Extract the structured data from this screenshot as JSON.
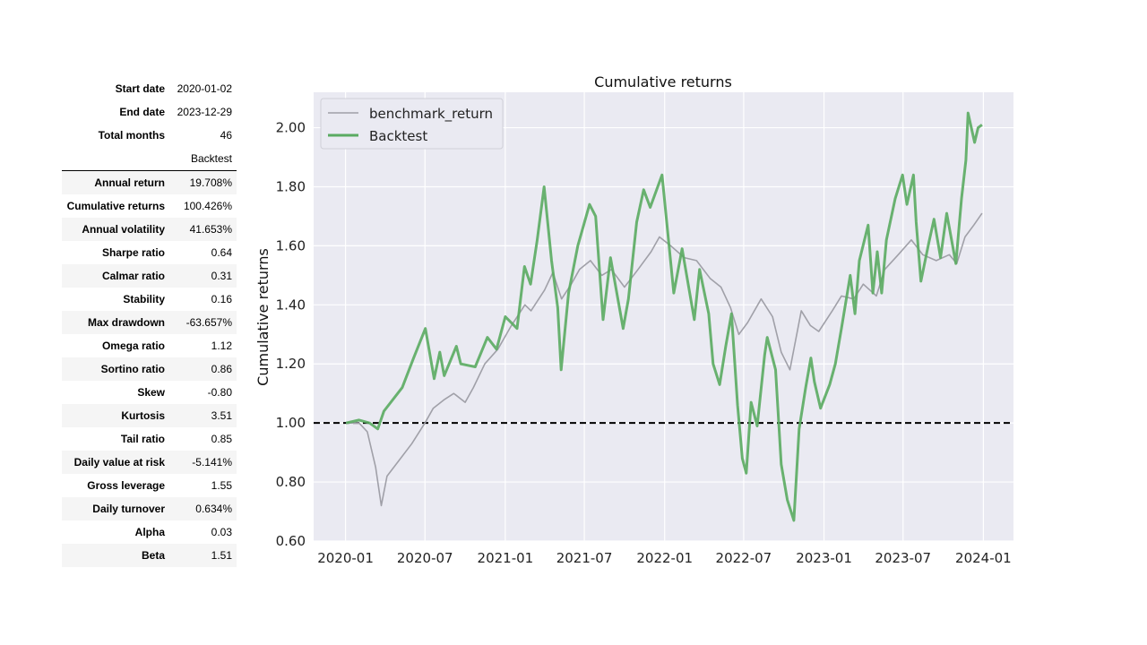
{
  "summary": [
    {
      "label": "Start date",
      "value": "2020-01-02"
    },
    {
      "label": "End date",
      "value": "2023-12-29"
    },
    {
      "label": "Total months",
      "value": "46"
    }
  ],
  "metrics_header": "Backtest",
  "metrics": [
    {
      "label": "Annual return",
      "value": "19.708%"
    },
    {
      "label": "Cumulative returns",
      "value": "100.426%"
    },
    {
      "label": "Annual volatility",
      "value": "41.653%"
    },
    {
      "label": "Sharpe ratio",
      "value": "0.64"
    },
    {
      "label": "Calmar ratio",
      "value": "0.31"
    },
    {
      "label": "Stability",
      "value": "0.16"
    },
    {
      "label": "Max drawdown",
      "value": "-63.657%"
    },
    {
      "label": "Omega ratio",
      "value": "1.12"
    },
    {
      "label": "Sortino ratio",
      "value": "0.86"
    },
    {
      "label": "Skew",
      "value": "-0.80"
    },
    {
      "label": "Kurtosis",
      "value": "3.51"
    },
    {
      "label": "Tail ratio",
      "value": "0.85"
    },
    {
      "label": "Daily value at risk",
      "value": "-5.141%"
    },
    {
      "label": "Gross leverage",
      "value": "1.55"
    },
    {
      "label": "Daily turnover",
      "value": "0.634%"
    },
    {
      "label": "Alpha",
      "value": "0.03"
    },
    {
      "label": "Beta",
      "value": "1.51"
    }
  ],
  "chart_data": {
    "type": "line",
    "title": "Cumulative returns",
    "xlabel": "",
    "ylabel": "Cumulative returns",
    "xlim": [
      "2019-10-20",
      "2024-03-10"
    ],
    "ylim": [
      0.6,
      2.12
    ],
    "yticks": [
      "0.60",
      "0.80",
      "1.00",
      "1.20",
      "1.40",
      "1.60",
      "1.80",
      "2.00"
    ],
    "xticks": [
      "2020-01",
      "2020-07",
      "2021-01",
      "2021-07",
      "2022-01",
      "2022-07",
      "2023-01",
      "2023-07",
      "2024-01"
    ],
    "grid": true,
    "legend": "top-left",
    "reference_line": {
      "y": 1.0,
      "style": "dashed",
      "color": "#000000"
    },
    "background": "#eaeaf2",
    "series": [
      {
        "name": "benchmark_return",
        "color": "#a0a0a8",
        "points": [
          [
            "2020-01-02",
            1.0
          ],
          [
            "2020-02-01",
            1.0
          ],
          [
            "2020-02-20",
            0.97
          ],
          [
            "2020-03-10",
            0.85
          ],
          [
            "2020-03-23",
            0.72
          ],
          [
            "2020-04-05",
            0.82
          ],
          [
            "2020-05-01",
            0.87
          ],
          [
            "2020-06-01",
            0.93
          ],
          [
            "2020-07-01",
            1.0
          ],
          [
            "2020-07-20",
            1.05
          ],
          [
            "2020-08-15",
            1.08
          ],
          [
            "2020-09-05",
            1.1
          ],
          [
            "2020-10-01",
            1.07
          ],
          [
            "2020-10-20",
            1.12
          ],
          [
            "2020-11-15",
            1.2
          ],
          [
            "2020-12-15",
            1.25
          ],
          [
            "2021-01-15",
            1.33
          ],
          [
            "2021-02-15",
            1.4
          ],
          [
            "2021-03-01",
            1.38
          ],
          [
            "2021-04-01",
            1.45
          ],
          [
            "2021-04-20",
            1.51
          ],
          [
            "2021-05-10",
            1.42
          ],
          [
            "2021-06-01",
            1.47
          ],
          [
            "2021-06-20",
            1.52
          ],
          [
            "2021-07-15",
            1.55
          ],
          [
            "2021-08-10",
            1.5
          ],
          [
            "2021-09-01",
            1.52
          ],
          [
            "2021-10-01",
            1.46
          ],
          [
            "2021-11-01",
            1.52
          ],
          [
            "2021-12-01",
            1.58
          ],
          [
            "2021-12-20",
            1.63
          ],
          [
            "2022-01-15",
            1.6
          ],
          [
            "2022-02-15",
            1.56
          ],
          [
            "2022-03-15",
            1.55
          ],
          [
            "2022-04-15",
            1.49
          ],
          [
            "2022-05-10",
            1.46
          ],
          [
            "2022-06-01",
            1.39
          ],
          [
            "2022-06-20",
            1.3
          ],
          [
            "2022-07-10",
            1.34
          ],
          [
            "2022-08-10",
            1.42
          ],
          [
            "2022-09-05",
            1.36
          ],
          [
            "2022-09-25",
            1.24
          ],
          [
            "2022-10-15",
            1.18
          ],
          [
            "2022-11-10",
            1.38
          ],
          [
            "2022-12-01",
            1.33
          ],
          [
            "2022-12-20",
            1.31
          ],
          [
            "2023-01-20",
            1.38
          ],
          [
            "2023-02-10",
            1.43
          ],
          [
            "2023-03-10",
            1.42
          ],
          [
            "2023-04-01",
            1.47
          ],
          [
            "2023-05-01",
            1.43
          ],
          [
            "2023-05-20",
            1.52
          ],
          [
            "2023-06-20",
            1.57
          ],
          [
            "2023-07-20",
            1.62
          ],
          [
            "2023-08-15",
            1.57
          ],
          [
            "2023-09-15",
            1.55
          ],
          [
            "2023-10-15",
            1.57
          ],
          [
            "2023-11-01",
            1.54
          ],
          [
            "2023-11-20",
            1.63
          ],
          [
            "2023-12-10",
            1.67
          ],
          [
            "2023-12-29",
            1.71
          ]
        ]
      },
      {
        "name": "Backtest",
        "color": "#5aab61",
        "points": [
          [
            "2020-01-02",
            1.0
          ],
          [
            "2020-02-01",
            1.01
          ],
          [
            "2020-02-25",
            1.0
          ],
          [
            "2020-03-15",
            0.98
          ],
          [
            "2020-03-29",
            1.04
          ],
          [
            "2020-05-10",
            1.12
          ],
          [
            "2020-06-05",
            1.22
          ],
          [
            "2020-07-02",
            1.32
          ],
          [
            "2020-07-22",
            1.15
          ],
          [
            "2020-08-04",
            1.24
          ],
          [
            "2020-08-14",
            1.16
          ],
          [
            "2020-09-11",
            1.26
          ],
          [
            "2020-09-21",
            1.2
          ],
          [
            "2020-10-24",
            1.19
          ],
          [
            "2020-11-21",
            1.29
          ],
          [
            "2020-12-12",
            1.25
          ],
          [
            "2021-01-01",
            1.36
          ],
          [
            "2021-01-28",
            1.32
          ],
          [
            "2021-02-14",
            1.53
          ],
          [
            "2021-02-28",
            1.47
          ],
          [
            "2021-03-15",
            1.62
          ],
          [
            "2021-03-31",
            1.8
          ],
          [
            "2021-04-17",
            1.55
          ],
          [
            "2021-05-01",
            1.39
          ],
          [
            "2021-05-09",
            1.18
          ],
          [
            "2021-05-26",
            1.44
          ],
          [
            "2021-06-16",
            1.6
          ],
          [
            "2021-07-13",
            1.74
          ],
          [
            "2021-07-27",
            1.7
          ],
          [
            "2021-08-13",
            1.35
          ],
          [
            "2021-08-30",
            1.56
          ],
          [
            "2021-09-28",
            1.32
          ],
          [
            "2021-10-10",
            1.42
          ],
          [
            "2021-10-29",
            1.68
          ],
          [
            "2021-11-14",
            1.79
          ],
          [
            "2021-11-29",
            1.73
          ],
          [
            "2021-12-26",
            1.84
          ],
          [
            "2022-01-22",
            1.44
          ],
          [
            "2022-02-10",
            1.59
          ],
          [
            "2022-03-10",
            1.35
          ],
          [
            "2022-03-22",
            1.52
          ],
          [
            "2022-04-12",
            1.37
          ],
          [
            "2022-04-22",
            1.2
          ],
          [
            "2022-05-07",
            1.13
          ],
          [
            "2022-05-21",
            1.26
          ],
          [
            "2022-06-03",
            1.37
          ],
          [
            "2022-06-17",
            1.06
          ],
          [
            "2022-06-28",
            0.88
          ],
          [
            "2022-07-07",
            0.83
          ],
          [
            "2022-07-18",
            1.07
          ],
          [
            "2022-08-01",
            0.99
          ],
          [
            "2022-08-18",
            1.23
          ],
          [
            "2022-08-24",
            1.29
          ],
          [
            "2022-09-12",
            1.18
          ],
          [
            "2022-09-25",
            0.86
          ],
          [
            "2022-10-09",
            0.74
          ],
          [
            "2022-10-24",
            0.67
          ],
          [
            "2022-11-05",
            0.98
          ],
          [
            "2022-11-20",
            1.12
          ],
          [
            "2022-12-02",
            1.22
          ],
          [
            "2022-12-10",
            1.14
          ],
          [
            "2022-12-24",
            1.05
          ],
          [
            "2023-01-14",
            1.13
          ],
          [
            "2023-01-27",
            1.2
          ],
          [
            "2023-02-10",
            1.32
          ],
          [
            "2023-03-02",
            1.5
          ],
          [
            "2023-03-13",
            1.37
          ],
          [
            "2023-03-23",
            1.55
          ],
          [
            "2023-04-12",
            1.67
          ],
          [
            "2023-04-23",
            1.44
          ],
          [
            "2023-05-03",
            1.58
          ],
          [
            "2023-05-13",
            1.44
          ],
          [
            "2023-05-24",
            1.62
          ],
          [
            "2023-06-13",
            1.76
          ],
          [
            "2023-06-30",
            1.84
          ],
          [
            "2023-07-10",
            1.74
          ],
          [
            "2023-07-25",
            1.84
          ],
          [
            "2023-07-31",
            1.68
          ],
          [
            "2023-08-11",
            1.48
          ],
          [
            "2023-08-29",
            1.61
          ],
          [
            "2023-09-10",
            1.69
          ],
          [
            "2023-09-25",
            1.56
          ],
          [
            "2023-10-09",
            1.71
          ],
          [
            "2023-10-30",
            1.54
          ],
          [
            "2023-11-12",
            1.76
          ],
          [
            "2023-11-22",
            1.89
          ],
          [
            "2023-11-27",
            2.05
          ],
          [
            "2023-12-12",
            1.95
          ],
          [
            "2023-12-20",
            2.0
          ],
          [
            "2023-12-29",
            2.01
          ]
        ]
      }
    ]
  }
}
